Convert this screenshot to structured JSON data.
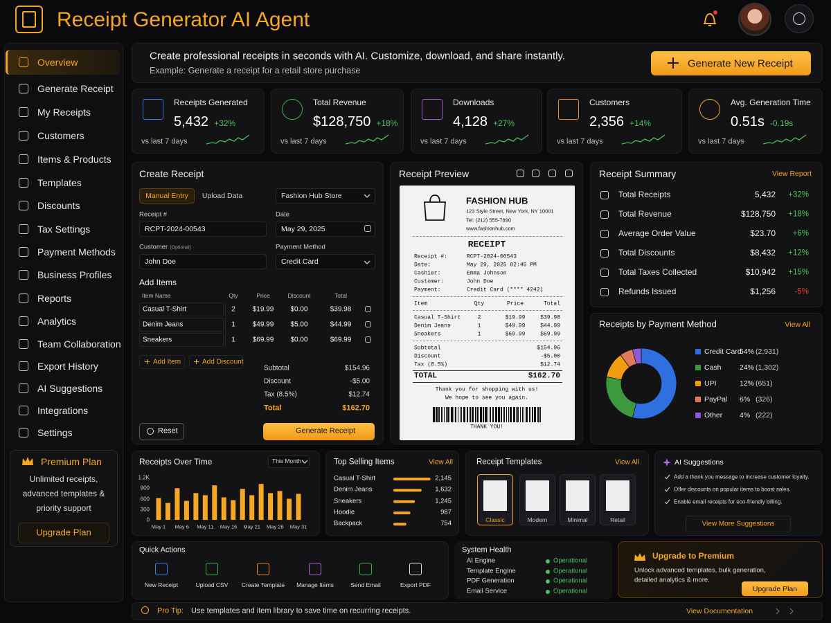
{
  "header": {
    "title": "Receipt Generator AI Agent"
  },
  "nav": {
    "items": [
      "Overview",
      "Generate Receipt",
      "My Receipts",
      "Customers",
      "Items & Products",
      "Templates",
      "Discounts",
      "Tax Settings",
      "Payment Methods",
      "Business Profiles",
      "Reports",
      "Analytics",
      "Team Collaboration",
      "Export History",
      "AI Suggestions",
      "Integrations",
      "Settings"
    ]
  },
  "premium": {
    "title": "Premium Plan",
    "lines": [
      "Unlimited receipts,",
      "advanced templates &",
      "priority support"
    ],
    "button": "Upgrade Plan"
  },
  "banner": {
    "text": "Create professional receipts in seconds with AI. Customize, download, and share instantly.",
    "example": "Example: Generate a receipt for a retail store purchase",
    "button": "Generate New Receipt"
  },
  "stats": [
    {
      "label": "Receipts Generated",
      "value": "5,432",
      "change": "+32%",
      "period": "vs last 7 days"
    },
    {
      "label": "Total Revenue",
      "value": "$128,750",
      "change": "+18%",
      "period": "vs last 7 days"
    },
    {
      "label": "Downloads",
      "value": "4,128",
      "change": "+27%",
      "period": "vs last 7 days"
    },
    {
      "label": "Customers",
      "value": "2,356",
      "change": "+14%",
      "period": "vs last 7 days"
    },
    {
      "label": "Avg. Generation Time",
      "value": "0.51s",
      "change": "-0.19s",
      "period": "vs last 7 days"
    }
  ],
  "create": {
    "title": "Create Receipt",
    "tabs": [
      "Manual Entry",
      "Upload Data"
    ],
    "store": "Fashion Hub Store",
    "fields": [
      {
        "label": "Receipt #",
        "value": "RCPT-2024-00543"
      },
      {
        "label": "Date",
        "value": "May 29, 2025"
      },
      {
        "label": "Customer",
        "hint": "(Optional)",
        "value": "John Doe"
      },
      {
        "label": "Payment Method",
        "value": "Credit Card"
      }
    ],
    "items_title": "Add Items",
    "columns": [
      "Item Name",
      "Qty",
      "Price",
      "Discount",
      "Total"
    ],
    "rows": [
      [
        "Casual T-Shirt",
        "2",
        "$19.99",
        "$0.00",
        "$39.98"
      ],
      [
        "Denim Jeans",
        "1",
        "$49.99",
        "$5.00",
        "$44.99"
      ],
      [
        "Sneakers",
        "1",
        "$69.99",
        "$0.00",
        "$69.99"
      ]
    ],
    "add_item": "Add Item",
    "add_discount": "Add Discount",
    "totals": [
      [
        "Subtotal",
        "$154.96"
      ],
      [
        "Discount",
        "-$5.00"
      ],
      [
        "Tax (8.5%)",
        "$12.74"
      ],
      [
        "Total",
        "$162.70"
      ]
    ],
    "reset": "Reset",
    "generate": "Generate Receipt"
  },
  "preview": {
    "title": "Receipt Preview",
    "store": "FASHION HUB",
    "address": "123 Style Street, New York, NY 10001",
    "tel": "Tel: (212) 555-7890",
    "web": "www.fashionhub.com",
    "heading": "RECEIPT",
    "meta": [
      [
        "Receipt #:",
        "RCPT-2024-00543"
      ],
      [
        "Date:",
        "May 29, 2025 02:45 PM"
      ],
      [
        "Cashier:",
        "Emma Johnson"
      ],
      [
        "Customer:",
        "John Doe"
      ],
      [
        "Payment:",
        "Credit Card (**** 4242)"
      ]
    ],
    "columns": [
      "Item",
      "Qty",
      "Price",
      "Total"
    ],
    "rows": [
      [
        "Casual T-Shirt",
        "2",
        "$19.99",
        "$39.98"
      ],
      [
        "Denim Jeans",
        "1",
        "$49.99",
        "$44.99"
      ],
      [
        "Sneakers",
        "1",
        "$69.99",
        "$69.99"
      ]
    ],
    "sums": [
      [
        "Subtotal",
        "$154.96"
      ],
      [
        "Discount",
        "-$5.00"
      ],
      [
        "Tax (8.5%)",
        "$12.74"
      ]
    ],
    "total": [
      "TOTAL",
      "$162.70"
    ],
    "thanks": [
      "Thank you for shopping with us!",
      "We hope to see you again."
    ],
    "footer": "THANK YOU!"
  },
  "summary": {
    "title": "Receipt Summary",
    "link": "View Report",
    "rows": [
      {
        "label": "Total Receipts",
        "value": "5,432",
        "change": "+32%"
      },
      {
        "label": "Total Revenue",
        "value": "$128,750",
        "change": "+18%"
      },
      {
        "label": "Average Order Value",
        "value": "$23.70",
        "change": "+6%"
      },
      {
        "label": "Total Discounts",
        "value": "$8,432",
        "change": "+12%"
      },
      {
        "label": "Total Taxes Collected",
        "value": "$10,942",
        "change": "+15%"
      },
      {
        "label": "Refunds Issued",
        "value": "$1,256",
        "change": "-5%"
      }
    ]
  },
  "payment": {
    "type": "pie",
    "title": "Receipts by Payment Method",
    "link": "View All",
    "categories": [
      "Credit Card",
      "Cash",
      "UPI",
      "PayPal",
      "Other"
    ],
    "values": [
      54,
      24,
      12,
      6,
      4
    ],
    "value_labels": [
      "54%",
      "24%",
      "12%",
      "6%",
      "4%"
    ],
    "count_labels": [
      "(2,931)",
      "(1,302)",
      "(651)",
      "(326)",
      "(222)"
    ],
    "colors": [
      "#2f6fe0",
      "#3c9a3c",
      "#f39c12",
      "#e07b5a",
      "#8e5bd8"
    ]
  },
  "over_time": {
    "type": "bar",
    "title": "Receipts Over Time",
    "range": "This Month",
    "color": "#f5a623",
    "x": [
      1,
      3,
      5,
      7,
      9,
      11,
      13,
      15,
      17,
      19,
      21,
      23,
      25,
      27,
      29,
      31
    ],
    "values": [
      620,
      480,
      900,
      540,
      760,
      700,
      980,
      640,
      560,
      880,
      700,
      1020,
      760,
      820,
      600,
      740
    ],
    "xlim": [
      1,
      31
    ],
    "xticks": [
      {
        "value": 1,
        "label": "May 1"
      },
      {
        "value": 6,
        "label": "May 6"
      },
      {
        "value": 11,
        "label": "May 11"
      },
      {
        "value": 16,
        "label": "May 16"
      },
      {
        "value": 21,
        "label": "May 21"
      },
      {
        "value": 26,
        "label": "May 26"
      },
      {
        "value": 31,
        "label": "May 31"
      }
    ],
    "ylim": [
      0,
      1200
    ],
    "yticks": [
      0,
      300,
      600,
      900,
      {
        "value": 1200,
        "label": "1.2K"
      }
    ],
    "grid": false
  },
  "top_items": {
    "type": "bar",
    "title": "Top Selling Items",
    "link": "View All",
    "color": "#f5a623",
    "categories": [
      "Casual T-Shirt",
      "Denim Jeans",
      "Sneakers",
      "Hoodie",
      "Backpack"
    ],
    "values": [
      2145,
      1632,
      1245,
      987,
      754
    ],
    "value_labels": [
      "2,145",
      "1,632",
      "1,245",
      "987",
      "754"
    ],
    "xlim": [
      0,
      2200
    ]
  },
  "templates": {
    "title": "Receipt Templates",
    "link": "View All",
    "items": [
      "Classic",
      "Modern",
      "Minimal",
      "Retail"
    ]
  },
  "ai": {
    "title": "AI Suggestions",
    "items": [
      "Add a thank you message to increase customer loyalty.",
      "Offer discounts on popular items to boost sales.",
      "Enable email receipts for eco-friendly billing."
    ],
    "button": "View More Suggestions"
  },
  "quick": {
    "title": "Quick Actions",
    "items": [
      "New Receipt",
      "Upload CSV",
      "Create Template",
      "Manage Items",
      "Send Email",
      "Export PDF"
    ]
  },
  "health": {
    "title": "System Health",
    "rows": [
      [
        "AI Engine",
        "Operational"
      ],
      [
        "Template Engine",
        "Operational"
      ],
      [
        "PDF Generation",
        "Operational"
      ],
      [
        "Email Service",
        "Operational"
      ]
    ]
  },
  "upgrade": {
    "title": "Upgrade to Premium",
    "lines": [
      "Unlock advanced templates, bulk generation,",
      "detailed analytics & more."
    ],
    "button": "Upgrade Plan"
  },
  "tip": {
    "label": "Pro Tip:",
    "text": "Use templates and item library to save time on recurring receipts.",
    "link": "View Documentation"
  }
}
